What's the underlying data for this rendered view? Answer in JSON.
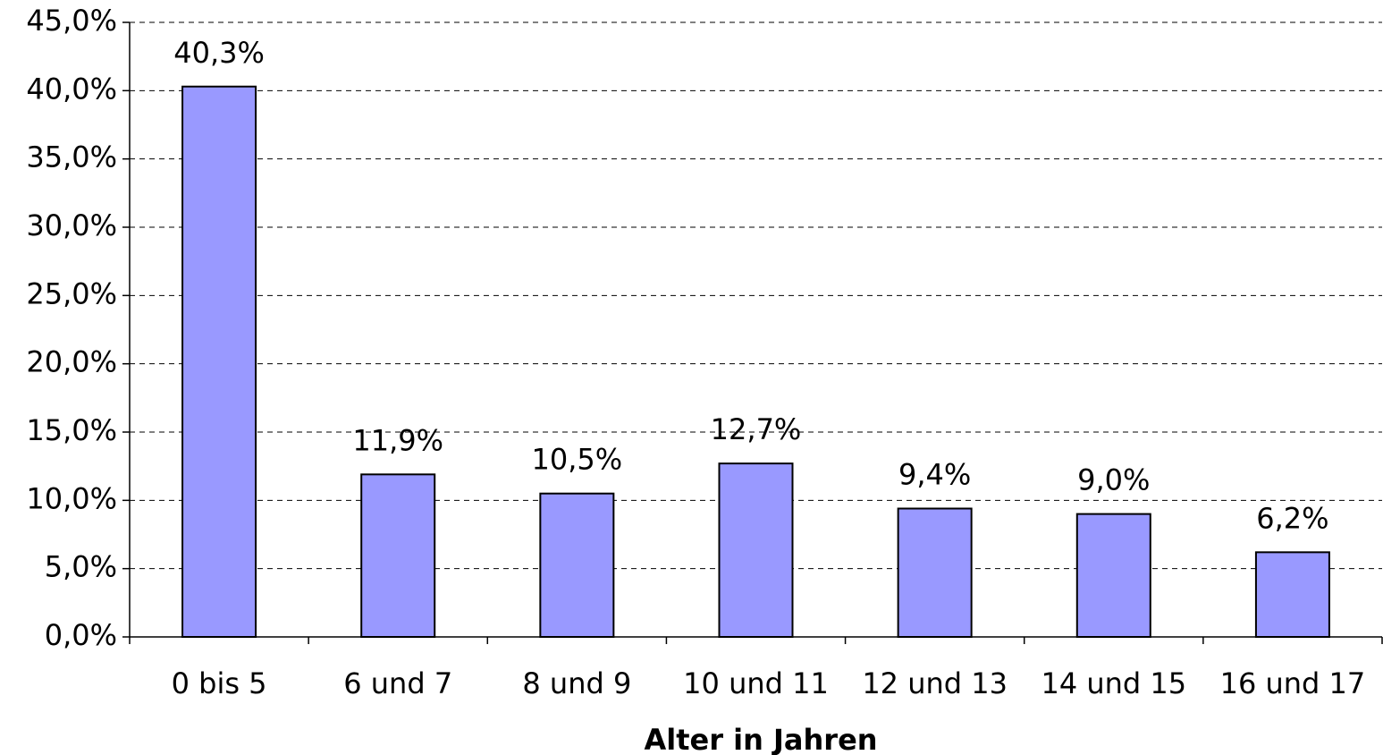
{
  "chart_data": {
    "type": "bar",
    "x_label": "Alter in Jahren",
    "categories": [
      "0 bis 5",
      "6 und 7",
      "8 und 9",
      "10 und 11",
      "12 und 13",
      "14 und 15",
      "16 und 17"
    ],
    "values": [
      40.3,
      11.9,
      10.5,
      12.7,
      9.4,
      9.0,
      6.2
    ],
    "value_labels": [
      "40,3%",
      "11,9%",
      "10,5%",
      "12,7%",
      "9,4%",
      "9,0%",
      "6,2%"
    ],
    "color": "#9999ff",
    "ylim": [
      0,
      45
    ],
    "yticks": [
      {
        "value": 0,
        "label": "0,0%"
      },
      {
        "value": 5,
        "label": "5,0%"
      },
      {
        "value": 10,
        "label": "10,0%"
      },
      {
        "value": 15,
        "label": "15,0%"
      },
      {
        "value": 20,
        "label": "20,0%"
      },
      {
        "value": 25,
        "label": "25,0%"
      },
      {
        "value": 30,
        "label": "30,0%"
      },
      {
        "value": 35,
        "label": "35,0%"
      },
      {
        "value": 40,
        "label": "40,0%"
      },
      {
        "value": 45,
        "label": "45,0%"
      }
    ],
    "grid": true
  }
}
